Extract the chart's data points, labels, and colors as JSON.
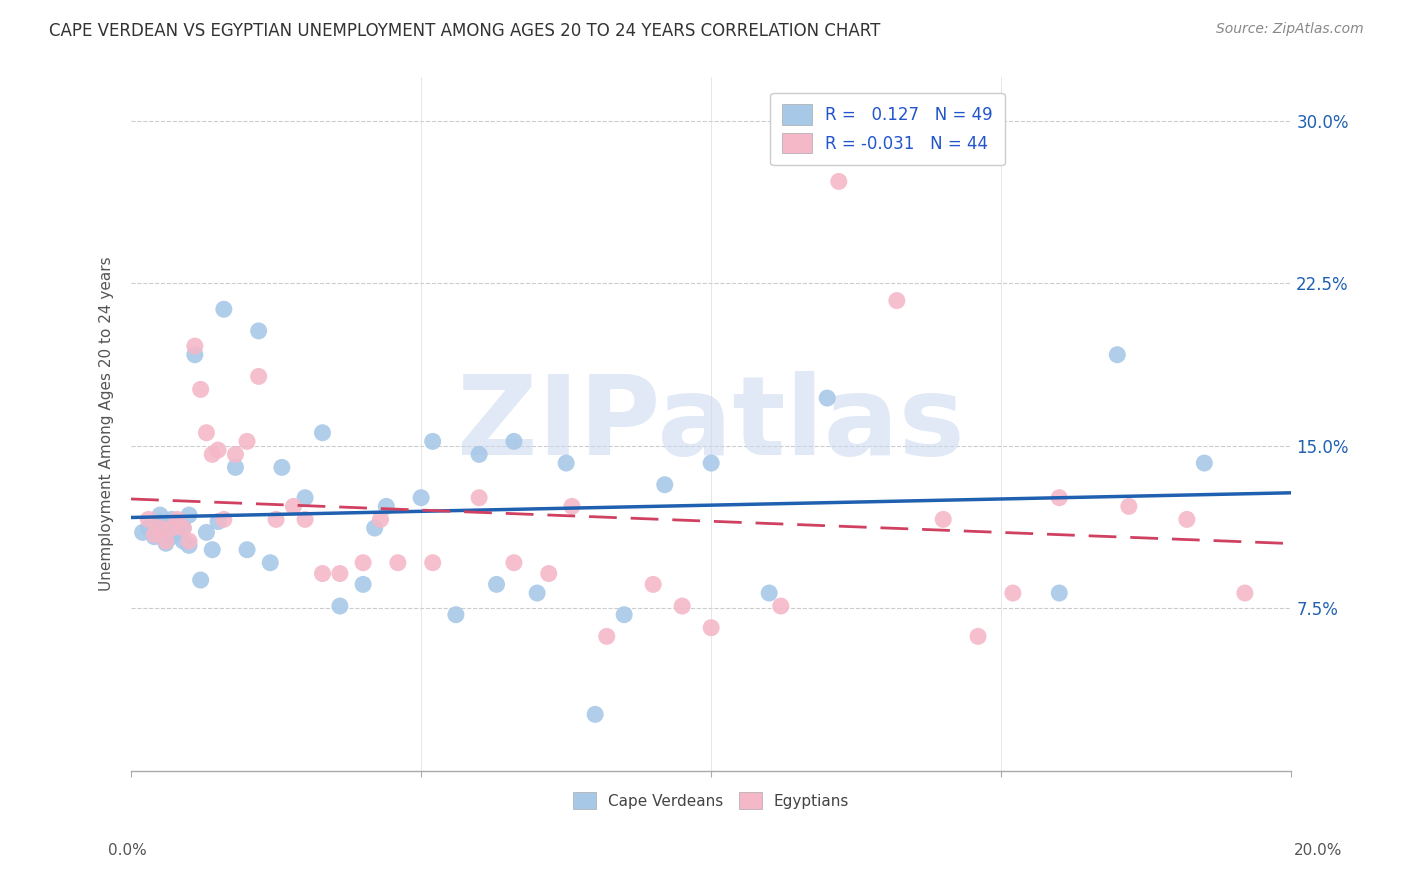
{
  "title": "CAPE VERDEAN VS EGYPTIAN UNEMPLOYMENT AMONG AGES 20 TO 24 YEARS CORRELATION CHART",
  "source": "Source: ZipAtlas.com",
  "ylabel": "Unemployment Among Ages 20 to 24 years",
  "yticks": [
    "7.5%",
    "15.0%",
    "22.5%",
    "30.0%"
  ],
  "ytick_vals": [
    0.075,
    0.15,
    0.225,
    0.3
  ],
  "xlim": [
    0.0,
    0.2
  ],
  "ylim": [
    0.0,
    0.32
  ],
  "legend_bottom1": "Cape Verdeans",
  "legend_bottom2": "Egyptians",
  "blue_color": "#a8c8e8",
  "pink_color": "#f4b8c8",
  "line_blue": "#2060b0",
  "line_pink": "#d04060",
  "watermark": "ZIPatlas",
  "blue_R": 0.127,
  "blue_N": 49,
  "pink_R": -0.031,
  "pink_N": 44,
  "blue_x": [
    0.002,
    0.003,
    0.004,
    0.005,
    0.005,
    0.006,
    0.006,
    0.007,
    0.007,
    0.008,
    0.008,
    0.009,
    0.009,
    0.01,
    0.01,
    0.011,
    0.012,
    0.013,
    0.014,
    0.015,
    0.016,
    0.018,
    0.02,
    0.022,
    0.024,
    0.026,
    0.03,
    0.033,
    0.036,
    0.04,
    0.042,
    0.044,
    0.05,
    0.052,
    0.056,
    0.06,
    0.063,
    0.066,
    0.07,
    0.075,
    0.08,
    0.085,
    0.092,
    0.1,
    0.11,
    0.12,
    0.16,
    0.17,
    0.185
  ],
  "blue_y": [
    0.11,
    0.112,
    0.108,
    0.115,
    0.118,
    0.105,
    0.112,
    0.108,
    0.116,
    0.11,
    0.114,
    0.106,
    0.112,
    0.104,
    0.118,
    0.192,
    0.088,
    0.11,
    0.102,
    0.115,
    0.213,
    0.14,
    0.102,
    0.203,
    0.096,
    0.14,
    0.126,
    0.156,
    0.076,
    0.086,
    0.112,
    0.122,
    0.126,
    0.152,
    0.072,
    0.146,
    0.086,
    0.152,
    0.082,
    0.142,
    0.026,
    0.072,
    0.132,
    0.142,
    0.082,
    0.172,
    0.082,
    0.192,
    0.142
  ],
  "pink_x": [
    0.003,
    0.004,
    0.005,
    0.006,
    0.007,
    0.008,
    0.009,
    0.01,
    0.011,
    0.012,
    0.013,
    0.014,
    0.015,
    0.016,
    0.018,
    0.02,
    0.022,
    0.025,
    0.028,
    0.03,
    0.033,
    0.036,
    0.04,
    0.043,
    0.046,
    0.052,
    0.06,
    0.066,
    0.072,
    0.076,
    0.082,
    0.09,
    0.095,
    0.1,
    0.112,
    0.122,
    0.132,
    0.14,
    0.146,
    0.152,
    0.16,
    0.172,
    0.182,
    0.192
  ],
  "pink_y": [
    0.116,
    0.109,
    0.112,
    0.106,
    0.112,
    0.116,
    0.112,
    0.106,
    0.196,
    0.176,
    0.156,
    0.146,
    0.148,
    0.116,
    0.146,
    0.152,
    0.182,
    0.116,
    0.122,
    0.116,
    0.091,
    0.091,
    0.096,
    0.116,
    0.096,
    0.096,
    0.126,
    0.096,
    0.091,
    0.122,
    0.062,
    0.086,
    0.076,
    0.066,
    0.076,
    0.272,
    0.217,
    0.116,
    0.062,
    0.082,
    0.126,
    0.122,
    0.116,
    0.082
  ]
}
